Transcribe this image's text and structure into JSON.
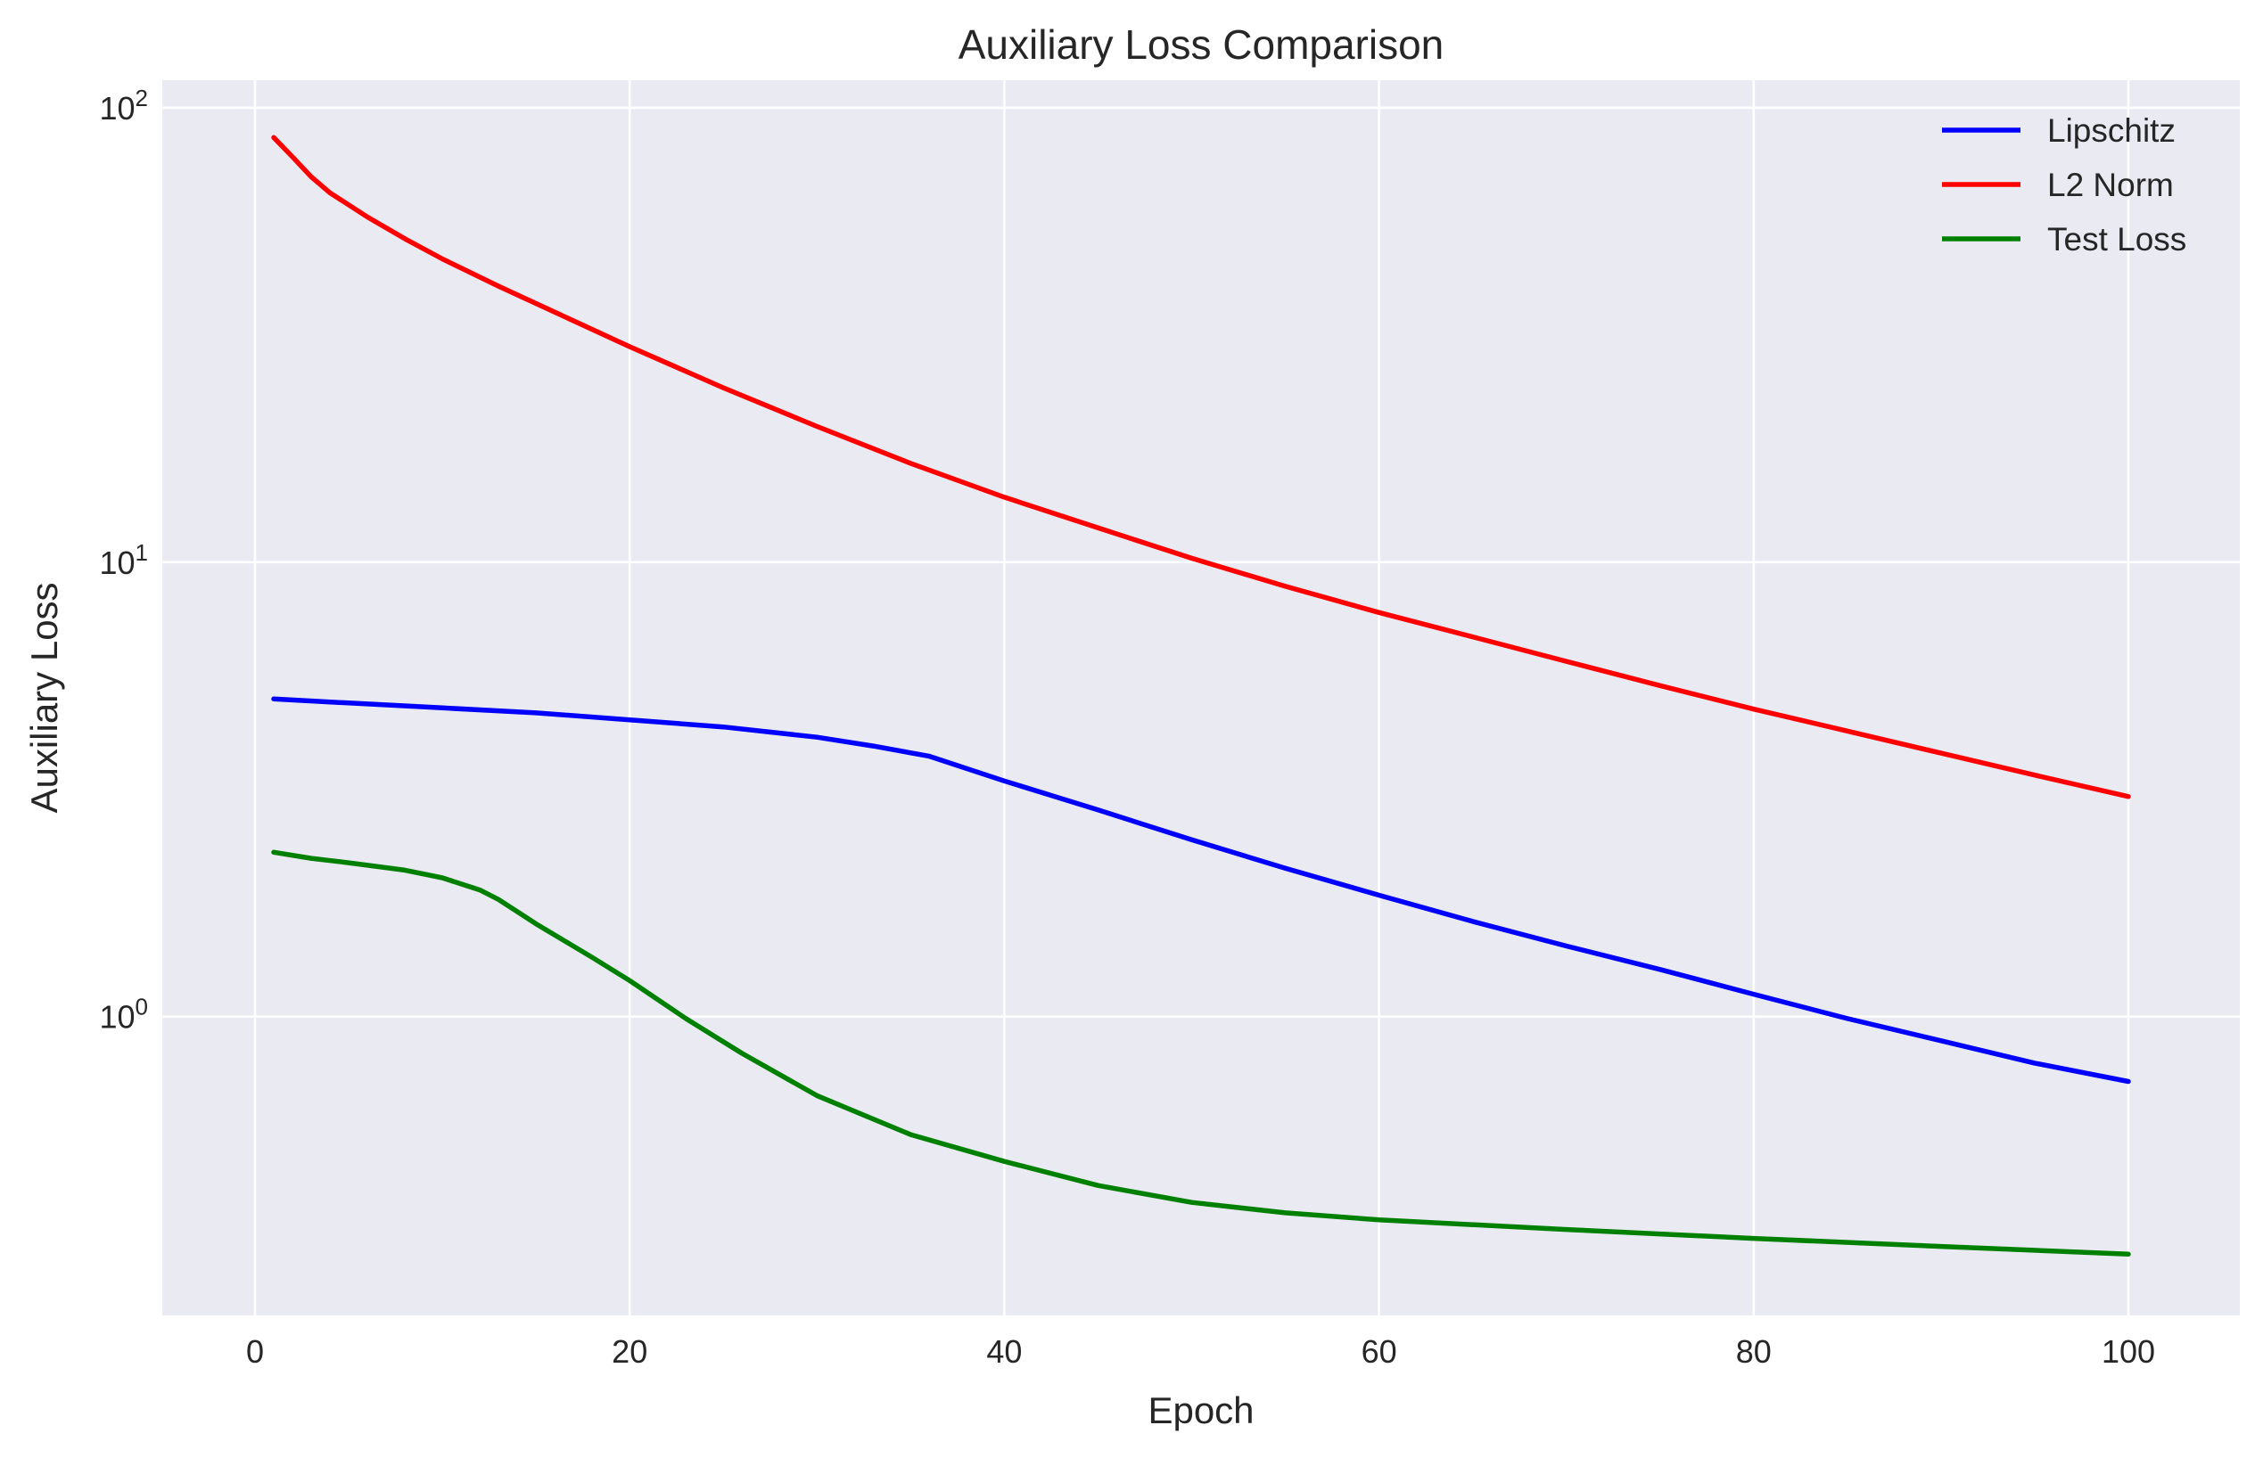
{
  "chart_data": {
    "type": "line",
    "title": "Auxiliary Loss Comparison",
    "xlabel": "Epoch",
    "ylabel": "Auxiliary Loss",
    "xlim": [
      -4.95,
      105.95
    ],
    "ylim": [
      0.22,
      115
    ],
    "yscale": "log",
    "grid": true,
    "legend_position": "top-right",
    "x_ticks": [
      0,
      20,
      40,
      60,
      80,
      100
    ],
    "x_tick_labels": [
      "0",
      "20",
      "40",
      "60",
      "80",
      "100"
    ],
    "y_ticks": [
      {
        "value": 100,
        "base": "10",
        "exp": "2"
      },
      {
        "value": 10,
        "base": "10",
        "exp": "1"
      },
      {
        "value": 1,
        "base": "10",
        "exp": "0"
      }
    ],
    "colors": {
      "background": "#eaeaf2",
      "grid": "#ffffff",
      "text": "#262626"
    },
    "series": [
      {
        "name": "Lipschitz",
        "color": "#0000ff",
        "points": [
          [
            1,
            5.0
          ],
          [
            5,
            4.9
          ],
          [
            10,
            4.78
          ],
          [
            15,
            4.66
          ],
          [
            20,
            4.5
          ],
          [
            25,
            4.34
          ],
          [
            30,
            4.12
          ],
          [
            33,
            3.94
          ],
          [
            36,
            3.74
          ],
          [
            40,
            3.3
          ],
          [
            45,
            2.85
          ],
          [
            50,
            2.45
          ],
          [
            55,
            2.12
          ],
          [
            60,
            1.85
          ],
          [
            65,
            1.62
          ],
          [
            70,
            1.43
          ],
          [
            75,
            1.27
          ],
          [
            80,
            1.12
          ],
          [
            85,
            0.99
          ],
          [
            90,
            0.885
          ],
          [
            95,
            0.79
          ],
          [
            100,
            0.72
          ]
        ]
      },
      {
        "name": "L2 Norm",
        "color": "#ff0000",
        "points": [
          [
            1,
            86
          ],
          [
            2,
            78
          ],
          [
            3,
            70.5
          ],
          [
            4,
            65
          ],
          [
            6,
            57.5
          ],
          [
            8,
            51.5
          ],
          [
            10,
            46.5
          ],
          [
            13,
            40.5
          ],
          [
            16,
            35.5
          ],
          [
            20,
            29.8
          ],
          [
            25,
            24.2
          ],
          [
            30,
            19.9
          ],
          [
            35,
            16.5
          ],
          [
            40,
            13.9
          ],
          [
            45,
            11.9
          ],
          [
            50,
            10.2
          ],
          [
            55,
            8.85
          ],
          [
            60,
            7.75
          ],
          [
            65,
            6.85
          ],
          [
            70,
            6.05
          ],
          [
            75,
            5.35
          ],
          [
            80,
            4.75
          ],
          [
            85,
            4.25
          ],
          [
            90,
            3.8
          ],
          [
            95,
            3.4
          ],
          [
            100,
            3.05
          ]
        ]
      },
      {
        "name": "Test Loss",
        "color": "#008000",
        "points": [
          [
            1,
            2.3
          ],
          [
            3,
            2.23
          ],
          [
            5,
            2.18
          ],
          [
            8,
            2.1
          ],
          [
            10,
            2.02
          ],
          [
            12,
            1.9
          ],
          [
            13,
            1.81
          ],
          [
            15,
            1.6
          ],
          [
            18,
            1.35
          ],
          [
            20,
            1.2
          ],
          [
            23,
            0.99
          ],
          [
            26,
            0.83
          ],
          [
            30,
            0.67
          ],
          [
            35,
            0.55
          ],
          [
            40,
            0.48
          ],
          [
            45,
            0.425
          ],
          [
            50,
            0.39
          ],
          [
            55,
            0.37
          ],
          [
            60,
            0.357
          ],
          [
            70,
            0.34
          ],
          [
            80,
            0.325
          ],
          [
            90,
            0.312
          ],
          [
            100,
            0.3
          ]
        ]
      }
    ]
  }
}
